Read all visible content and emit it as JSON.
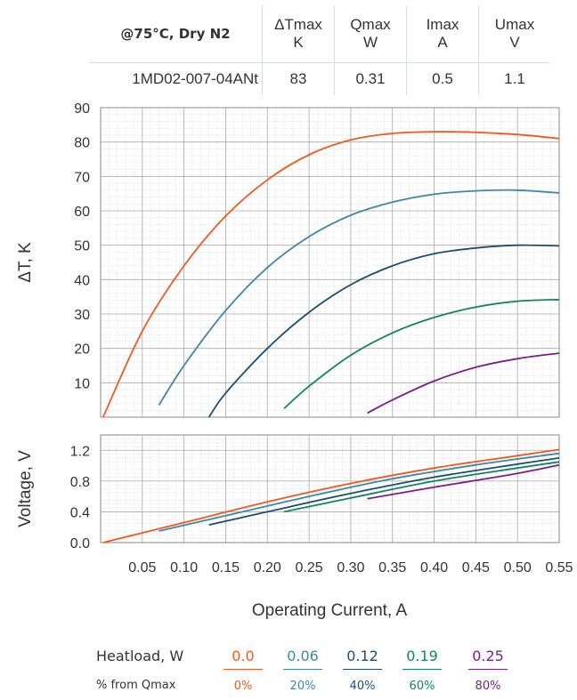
{
  "table": {
    "condition_label": "@75°C, Dry N2",
    "headers": [
      {
        "line1": "ΔTmax",
        "line2": "K"
      },
      {
        "line1": "Qmax",
        "line2": "W"
      },
      {
        "line1": "Imax",
        "line2": "A"
      },
      {
        "line1": "Umax",
        "line2": "V"
      }
    ],
    "row": {
      "model": "1MD02-007-04ANt",
      "values": [
        "83",
        "0.31",
        "0.5",
        "1.1"
      ]
    }
  },
  "legend": {
    "heatload_label": "Heatload, W",
    "pct_label": "% from Qmax",
    "items": [
      {
        "value": "0.0",
        "pct": "0%",
        "color": "#f05a1e"
      },
      {
        "value": "0.06",
        "pct": "20%",
        "color": "#3f86a8"
      },
      {
        "value": "0.12",
        "pct": "40%",
        "color": "#1b4f72"
      },
      {
        "value": "0.19",
        "pct": "60%",
        "color": "#12865a"
      },
      {
        "value": "0.25",
        "pct": "80%",
        "color": "#7b1f86"
      }
    ]
  },
  "chart_data": [
    {
      "type": "line",
      "ylabel": "ΔT, K",
      "xlim": [
        0,
        0.55
      ],
      "ylim": [
        0,
        90
      ],
      "yticks": [
        "10",
        "20",
        "30",
        "40",
        "50",
        "60",
        "70",
        "80",
        "90"
      ],
      "grid": true,
      "series": [
        {
          "color": "#f05a1e",
          "points": [
            [
              0.003,
              0
            ],
            [
              0.05,
              25
            ],
            [
              0.1,
              44
            ],
            [
              0.15,
              58.5
            ],
            [
              0.2,
              69
            ],
            [
              0.25,
              76.3
            ],
            [
              0.3,
              80.6
            ],
            [
              0.35,
              82.5
            ],
            [
              0.4,
              83
            ],
            [
              0.45,
              82.8
            ],
            [
              0.5,
              82.2
            ],
            [
              0.55,
              81
            ]
          ]
        },
        {
          "color": "#3f86a8",
          "points": [
            [
              0.07,
              3.5
            ],
            [
              0.1,
              15
            ],
            [
              0.15,
              31
            ],
            [
              0.2,
              43.5
            ],
            [
              0.25,
              52.5
            ],
            [
              0.3,
              58.7
            ],
            [
              0.35,
              62.5
            ],
            [
              0.4,
              64.8
            ],
            [
              0.45,
              65.8
            ],
            [
              0.5,
              66
            ],
            [
              0.55,
              65.2
            ]
          ]
        },
        {
          "color": "#1b4f72",
          "points": [
            [
              0.13,
              0
            ],
            [
              0.15,
              7
            ],
            [
              0.2,
              20
            ],
            [
              0.25,
              30.5
            ],
            [
              0.3,
              38.5
            ],
            [
              0.35,
              44
            ],
            [
              0.4,
              47.5
            ],
            [
              0.45,
              49.2
            ],
            [
              0.5,
              50
            ],
            [
              0.55,
              49.8
            ]
          ]
        },
        {
          "color": "#12865a",
          "points": [
            [
              0.22,
              2.5
            ],
            [
              0.25,
              9
            ],
            [
              0.3,
              18
            ],
            [
              0.35,
              24.5
            ],
            [
              0.4,
              29
            ],
            [
              0.45,
              32
            ],
            [
              0.5,
              33.7
            ],
            [
              0.55,
              34.2
            ]
          ]
        },
        {
          "color": "#7b1f86",
          "points": [
            [
              0.32,
              1.2
            ],
            [
              0.35,
              5
            ],
            [
              0.4,
              10.5
            ],
            [
              0.45,
              14.5
            ],
            [
              0.5,
              17
            ],
            [
              0.55,
              18.6
            ]
          ]
        }
      ]
    },
    {
      "type": "line",
      "ylabel": "Voltage, V",
      "xlabel": "Operating Current, A",
      "xlim": [
        0,
        0.55
      ],
      "ylim": [
        0,
        1.4
      ],
      "yticks": [
        "0.0",
        "0.4",
        "0.8",
        "1.2"
      ],
      "xticks": [
        "0.05",
        "0.10",
        "0.15",
        "0.20",
        "0.25",
        "0.30",
        "0.35",
        "0.40",
        "0.45",
        "0.50",
        "0.55"
      ],
      "grid": true,
      "series": [
        {
          "color": "#f05a1e",
          "points": [
            [
              0.003,
              0.0
            ],
            [
              0.1,
              0.26
            ],
            [
              0.2,
              0.53
            ],
            [
              0.3,
              0.77
            ],
            [
              0.4,
              0.97
            ],
            [
              0.5,
              1.13
            ],
            [
              0.55,
              1.21
            ]
          ]
        },
        {
          "color": "#3f86a8",
          "points": [
            [
              0.07,
              0.15
            ],
            [
              0.15,
              0.35
            ],
            [
              0.25,
              0.6
            ],
            [
              0.35,
              0.83
            ],
            [
              0.45,
              1.01
            ],
            [
              0.55,
              1.16
            ]
          ]
        },
        {
          "color": "#1b4f72",
          "points": [
            [
              0.13,
              0.23
            ],
            [
              0.2,
              0.4
            ],
            [
              0.3,
              0.64
            ],
            [
              0.4,
              0.85
            ],
            [
              0.5,
              1.02
            ],
            [
              0.55,
              1.1
            ]
          ]
        },
        {
          "color": "#12865a",
          "points": [
            [
              0.22,
              0.4
            ],
            [
              0.3,
              0.58
            ],
            [
              0.4,
              0.8
            ],
            [
              0.5,
              0.97
            ],
            [
              0.55,
              1.05
            ]
          ]
        },
        {
          "color": "#7b1f86",
          "points": [
            [
              0.32,
              0.57
            ],
            [
              0.4,
              0.72
            ],
            [
              0.5,
              0.9
            ],
            [
              0.55,
              1.01
            ]
          ]
        }
      ]
    }
  ]
}
